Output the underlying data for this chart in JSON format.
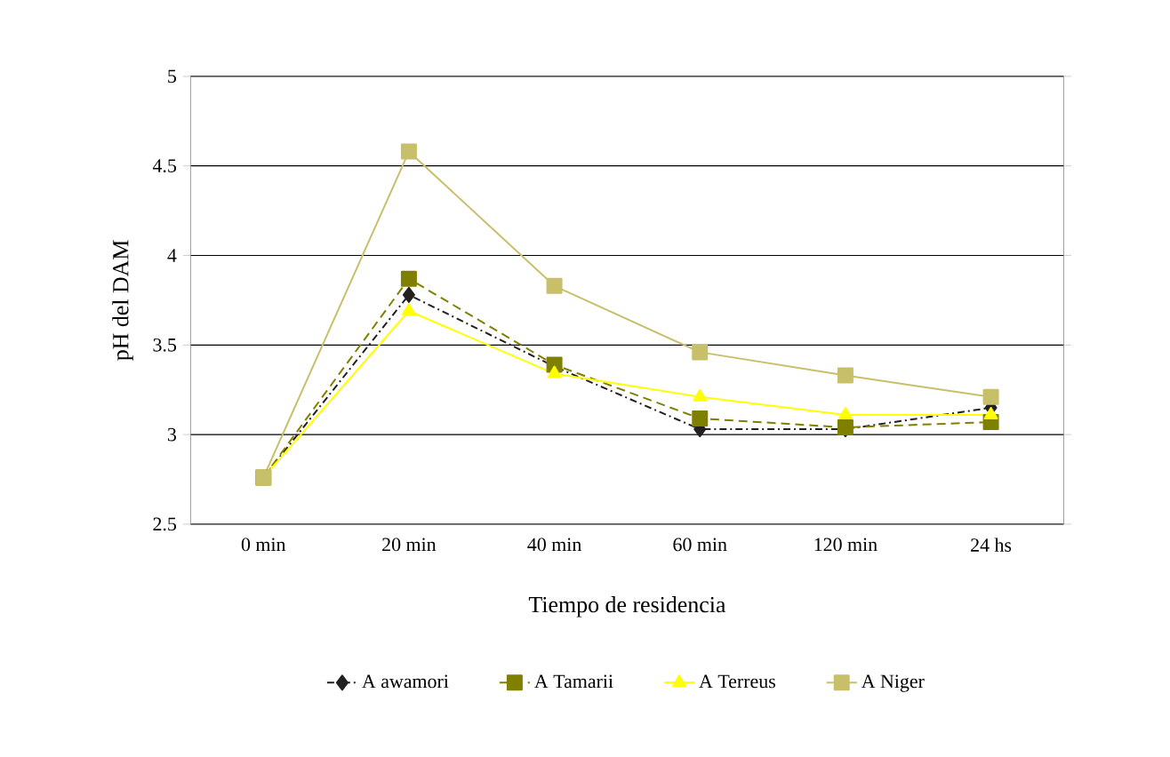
{
  "chart_data": {
    "type": "line",
    "xlabel": "Tiempo de residencia",
    "ylabel": "pH del DAM",
    "categories": [
      "0 min",
      "20 min",
      "40 min",
      "60 min",
      "120 min",
      "24 hs"
    ],
    "series": [
      {
        "name": "A awamori",
        "color": "#231f20",
        "marker": "diamond",
        "line_style": "dashdot",
        "values": [
          2.76,
          3.78,
          3.38,
          3.03,
          3.03,
          3.15
        ]
      },
      {
        "name": "A Tamarii",
        "color": "#808000",
        "marker": "square",
        "line_style": "dashed",
        "values": [
          2.76,
          3.87,
          3.39,
          3.09,
          3.04,
          3.07
        ]
      },
      {
        "name": "A Terreus",
        "color": "#ffff00",
        "marker": "triangle",
        "line_style": "solid",
        "values": [
          2.76,
          3.69,
          3.34,
          3.21,
          3.11,
          3.11
        ]
      },
      {
        "name": "A Niger",
        "color": "#c8bf6a",
        "marker": "square",
        "line_style": "solid",
        "values": [
          2.76,
          4.58,
          3.83,
          3.46,
          3.33,
          3.21
        ]
      }
    ],
    "ylim": [
      2.5,
      5
    ],
    "yticks": [
      2.5,
      3,
      3.5,
      4,
      4.5,
      5
    ],
    "grid": "y",
    "legend": "bottom"
  }
}
